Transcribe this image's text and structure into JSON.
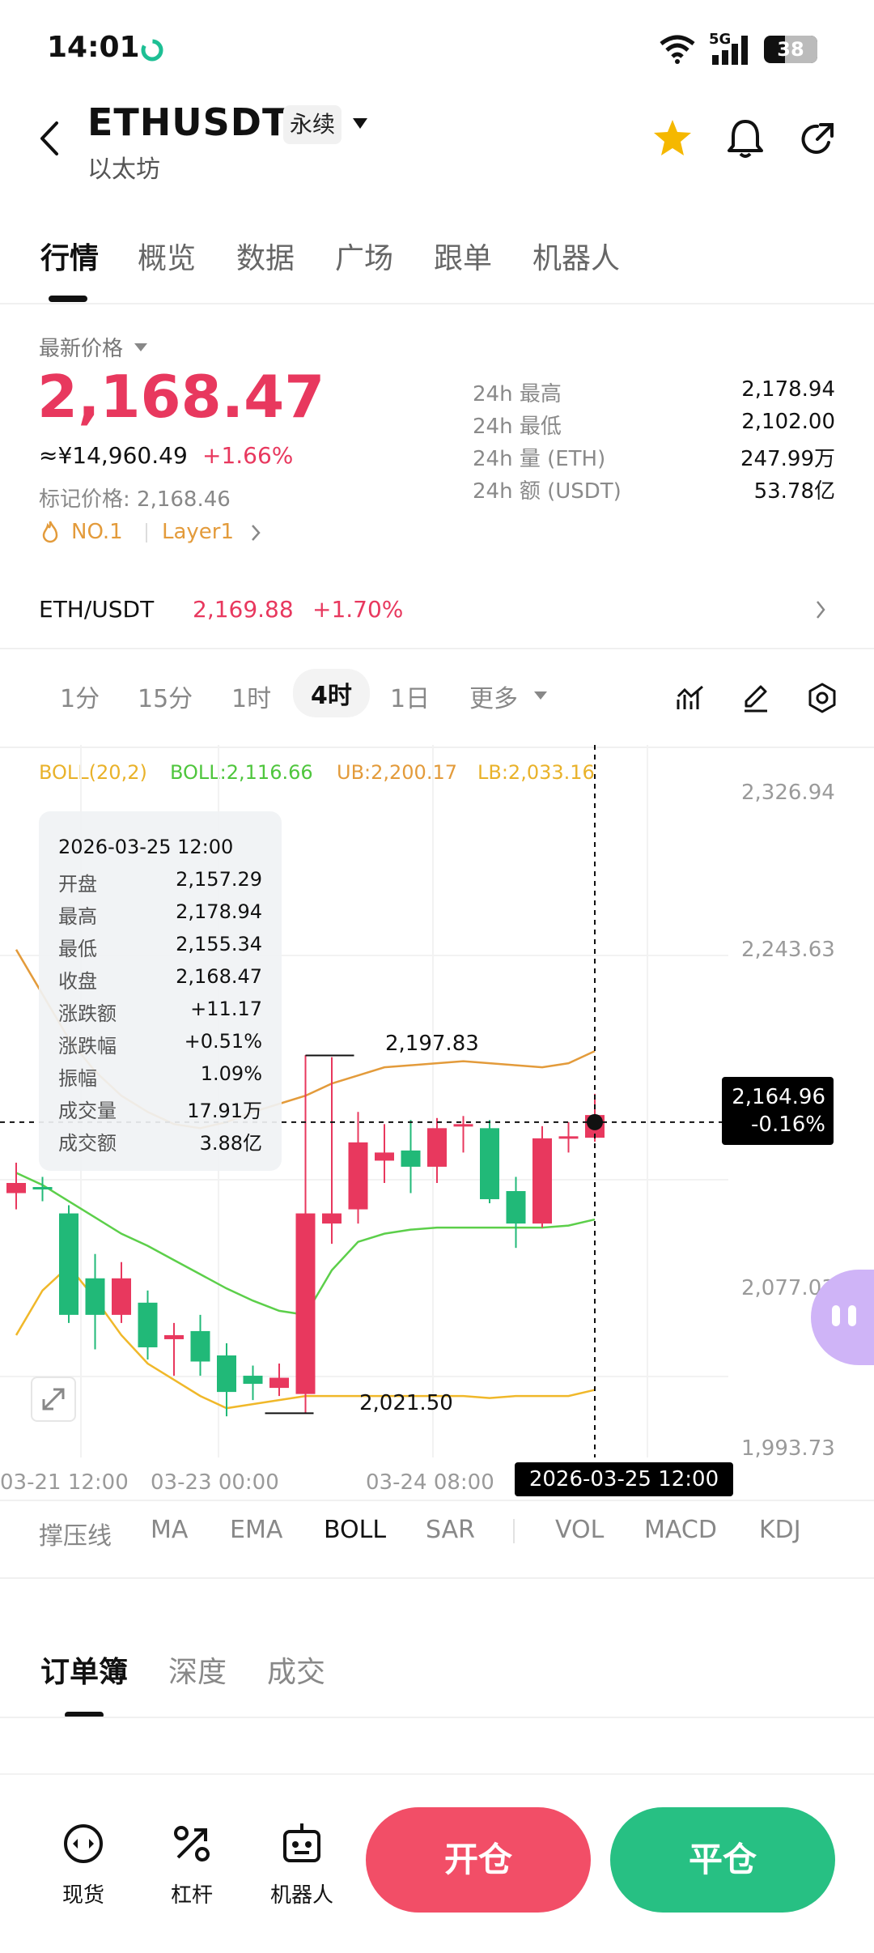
{
  "status": {
    "time": "14:01",
    "network": "5G",
    "battery": "38"
  },
  "header": {
    "symbol": "ETHUSDT",
    "contract_type": "永续",
    "name": "以太坊"
  },
  "tabs": [
    "行情",
    "概览",
    "数据",
    "广场",
    "跟单",
    "机器人"
  ],
  "price": {
    "latest_label": "最新价格",
    "latest": "2,168.47",
    "cny": "≈¥14,960.49",
    "change_pct": "+1.66%",
    "mark_label": "标记价格: 2,168.46",
    "rank_tag": "NO.1",
    "category_tag": "Layer1"
  },
  "stats": [
    {
      "label": "24h  最高",
      "value": "2,178.94"
    },
    {
      "label": "24h  最低",
      "value": "2,102.00"
    },
    {
      "label": "24h  量 (ETH)",
      "value": "247.99万"
    },
    {
      "label": "24h  额 (USDT)",
      "value": "53.78亿"
    }
  ],
  "spot": {
    "pair": "ETH/USDT",
    "price": "2,169.88",
    "change": "+1.70%"
  },
  "periods": [
    "1分",
    "15分",
    "1时",
    "4时",
    "1日",
    "更多"
  ],
  "boll": {
    "name": "BOLL(20,2)",
    "mid": "BOLL:2,116.66",
    "ub": "UB:2,200.17",
    "lb": "LB:2,033.16"
  },
  "tooltip": {
    "date": "2026-03-25 12:00",
    "rows": [
      {
        "k": "开盘",
        "v": "2,157.29"
      },
      {
        "k": "最高",
        "v": "2,178.94"
      },
      {
        "k": "最低",
        "v": "2,155.34"
      },
      {
        "k": "收盘",
        "v": "2,168.47"
      },
      {
        "k": "涨跌额",
        "v": "+11.17"
      },
      {
        "k": "涨跌幅",
        "v": "+0.51%"
      },
      {
        "k": "振幅",
        "v": "1.09%"
      },
      {
        "k": "成交量",
        "v": "17.91万"
      },
      {
        "k": "成交额",
        "v": "3.88亿"
      }
    ]
  },
  "y_axis": [
    "2,326.94",
    "2,243.63",
    "2,077.03",
    "1,993.73"
  ],
  "x_axis": [
    "03-21 12:00",
    "03-23 00:00",
    "03-24 08:00"
  ],
  "crosshair": {
    "price": "2,164.96",
    "change": "-0.16%",
    "date": "2026-03-25 12:00"
  },
  "annotations": {
    "high": "2,197.83",
    "low": "2,021.50"
  },
  "indicators": [
    "撑压线",
    "MA",
    "EMA",
    "BOLL",
    "SAR",
    "VOL",
    "MACD",
    "KDJ"
  ],
  "book_tabs": [
    "订单簿",
    "深度",
    "成交"
  ],
  "bottom_nav": [
    {
      "label": "现货",
      "icon": "spot-icon"
    },
    {
      "label": "杠杆",
      "icon": "leverage-icon"
    },
    {
      "label": "机器人",
      "icon": "robot-icon"
    }
  ],
  "actions": {
    "open": "开仓",
    "close": "平仓"
  },
  "colors": {
    "up": "#e8385e",
    "down": "#21b978",
    "boll_upper": "#e39b3b",
    "boll_mid": "#5ccf4a",
    "boll_lower": "#f0b82a"
  },
  "chart_data": {
    "type": "candlestick",
    "candles": [
      {
        "o": 2130,
        "h": 2145,
        "c": 2135,
        "l": 2122
      },
      {
        "o": 2133,
        "h": 2138,
        "c": 2132,
        "l": 2126
      },
      {
        "o": 2120,
        "h": 2124,
        "c": 2070,
        "l": 2066
      },
      {
        "o": 2088,
        "h": 2100,
        "c": 2070,
        "l": 2053
      },
      {
        "o": 2070,
        "h": 2096,
        "c": 2088,
        "l": 2066
      },
      {
        "o": 2076,
        "h": 2082,
        "c": 2054,
        "l": 2048
      },
      {
        "o": 2058,
        "h": 2066,
        "c": 2060,
        "l": 2040
      },
      {
        "o": 2062,
        "h": 2070,
        "c": 2047,
        "l": 2040
      },
      {
        "o": 2050,
        "h": 2056,
        "c": 2032,
        "l": 2020
      },
      {
        "o": 2040,
        "h": 2045,
        "c": 2036,
        "l": 2028
      },
      {
        "o": 2034,
        "h": 2046,
        "c": 2039,
        "l": 2030
      },
      {
        "o": 2031,
        "h": 2198,
        "c": 2120,
        "l": 2021.5
      },
      {
        "o": 2115,
        "h": 2197,
        "c": 2120,
        "l": 2105
      },
      {
        "o": 2122,
        "h": 2170,
        "c": 2155,
        "l": 2115
      },
      {
        "o": 2146,
        "h": 2164,
        "c": 2150,
        "l": 2135
      },
      {
        "o": 2151,
        "h": 2166,
        "c": 2143,
        "l": 2130
      },
      {
        "o": 2143,
        "h": 2167,
        "c": 2162,
        "l": 2135
      },
      {
        "o": 2163,
        "h": 2168,
        "c": 2164,
        "l": 2150
      },
      {
        "o": 2162,
        "h": 2166,
        "c": 2127,
        "l": 2125
      },
      {
        "o": 2131,
        "h": 2138,
        "c": 2115,
        "l": 2103
      },
      {
        "o": 2115,
        "h": 2163,
        "c": 2157,
        "l": 2113
      },
      {
        "o": 2157,
        "h": 2165,
        "c": 2158,
        "l": 2150
      },
      {
        "o": 2157.29,
        "h": 2178.94,
        "c": 2168.47,
        "l": 2155.34
      }
    ],
    "y_range": [
      1993.73,
      2326.94
    ]
  }
}
